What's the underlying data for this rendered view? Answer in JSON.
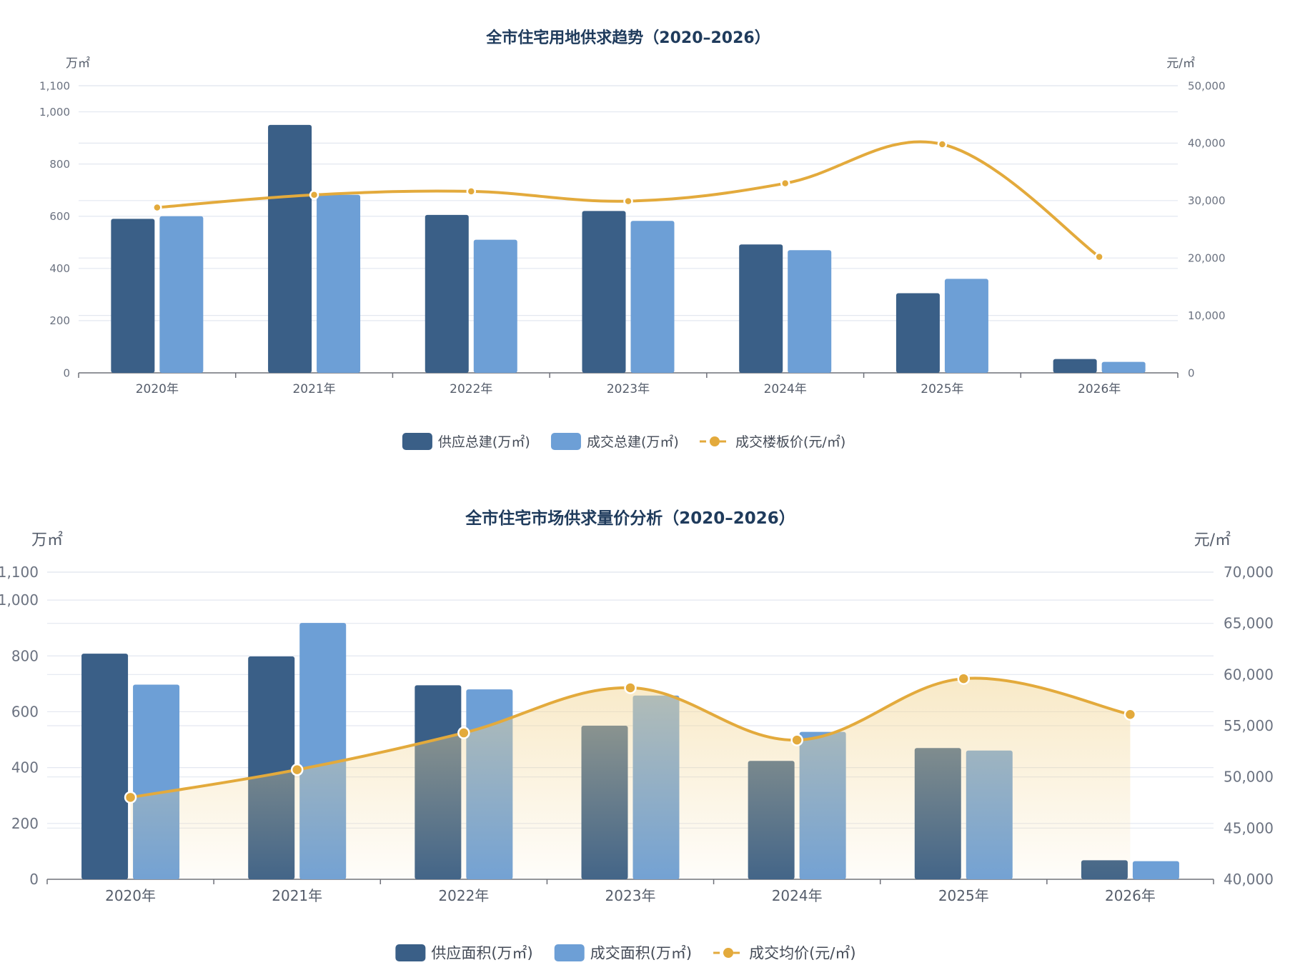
{
  "chart_data": [
    {
      "type": "bar",
      "title": "全市住宅用地供求趋势（2020–2026）",
      "y_left_unit": "万㎡",
      "y_right_unit": "元/㎡",
      "categories": [
        "2020年",
        "2021年",
        "2022年",
        "2023年",
        "2024年",
        "2025年",
        "2026年"
      ],
      "ylim_left": [
        0,
        1100
      ],
      "y_left_ticks": [
        "0",
        "200",
        "400",
        "600",
        "800",
        "1,000",
        "1,100"
      ],
      "y_left_tick_values": [
        0,
        200,
        400,
        600,
        800,
        1000,
        1100
      ],
      "ylim_right": [
        0,
        50000
      ],
      "y_right_ticks": [
        "0",
        "10,000",
        "20,000",
        "30,000",
        "40,000",
        "50,000"
      ],
      "y_right_tick_values": [
        0,
        10000,
        20000,
        30000,
        40000,
        50000
      ],
      "grid": true,
      "legend_position": "bottom-center",
      "series": [
        {
          "name": "供应总建(万㎡)",
          "type": "bar",
          "axis": "left",
          "color": "#3a5f87",
          "values": [
            590,
            950,
            605,
            620,
            492,
            305,
            53
          ]
        },
        {
          "name": "成交总建(万㎡)",
          "type": "bar",
          "axis": "left",
          "color": "#6d9fd6",
          "values": [
            600,
            682,
            510,
            582,
            470,
            360,
            42
          ]
        },
        {
          "name": "成交楼板价(元/㎡)",
          "type": "line",
          "axis": "right",
          "color": "#e3aa3c",
          "values": [
            28800,
            31000,
            31600,
            29900,
            33000,
            39800,
            20200
          ]
        }
      ]
    },
    {
      "type": "bar",
      "title": "全市住宅市场供求量价分析（2020–2026）",
      "y_left_unit": "万㎡",
      "y_right_unit": "元/㎡",
      "categories": [
        "2020年",
        "2021年",
        "2022年",
        "2023年",
        "2024年",
        "2025年",
        "2026年"
      ],
      "ylim_left": [
        0,
        1100
      ],
      "y_left_ticks": [
        "0",
        "200",
        "400",
        "600",
        "800",
        "1,000",
        "1,100"
      ],
      "y_left_tick_values": [
        0,
        200,
        400,
        600,
        800,
        1000,
        1100
      ],
      "ylim_right": [
        40000,
        70000
      ],
      "y_right_ticks": [
        "40,000",
        "45,000",
        "50,000",
        "55,000",
        "60,000",
        "65,000",
        "70,000"
      ],
      "y_right_tick_values": [
        40000,
        45000,
        50000,
        55000,
        60000,
        65000,
        70000
      ],
      "grid": true,
      "legend_position": "bottom-center",
      "series": [
        {
          "name": "供应面积(万㎡)",
          "type": "bar",
          "axis": "left",
          "color": "#3a5f87",
          "values": [
            808,
            798,
            695,
            550,
            424,
            470,
            68
          ]
        },
        {
          "name": "成交面积(万㎡)",
          "type": "bar",
          "axis": "left",
          "color": "#6d9fd6",
          "values": [
            697,
            918,
            680,
            658,
            528,
            461,
            65
          ]
        },
        {
          "name": "成交均价(元/㎡)",
          "type": "area-line",
          "axis": "right",
          "color": "#e3aa3c",
          "values": [
            48000,
            50700,
            54300,
            58700,
            53600,
            59600,
            56100
          ]
        }
      ]
    }
  ]
}
